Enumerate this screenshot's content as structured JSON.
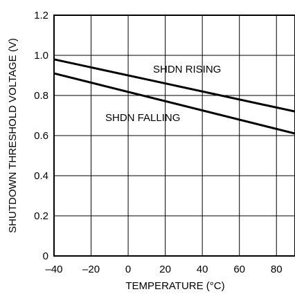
{
  "chart_data": {
    "type": "line",
    "title": "",
    "xlabel": "TEMPERATURE (°C)",
    "ylabel": "SHUTDOWN THRESHOLD VOLTAGE (V)",
    "xlim": [
      -40,
      90
    ],
    "ylim": [
      0,
      1.2
    ],
    "x_ticks": [
      -40,
      -20,
      0,
      20,
      40,
      60,
      80
    ],
    "x_tick_labels": [
      "–40",
      "–20",
      "0",
      "20",
      "40",
      "60",
      "80"
    ],
    "y_ticks": [
      0,
      0.2,
      0.4,
      0.6,
      0.8,
      1.0,
      1.2
    ],
    "y_tick_labels": [
      "0",
      "0.2",
      "0.4",
      "0.6",
      "0.8",
      "1.0",
      "1.2"
    ],
    "grid": true,
    "series": [
      {
        "name": "SHDN RISING",
        "x": [
          -40,
          90
        ],
        "y": [
          0.98,
          0.72
        ]
      },
      {
        "name": "SHDN FALLING",
        "x": [
          -40,
          90
        ],
        "y": [
          0.91,
          0.61
        ]
      }
    ]
  }
}
